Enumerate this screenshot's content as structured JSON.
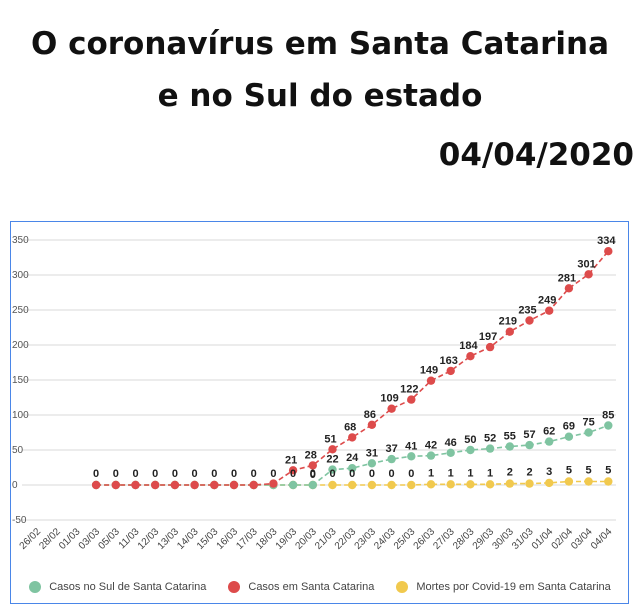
{
  "header": {
    "title_line1": "O coronavírus em Santa Catarina",
    "title_line2": "e no Sul do estado",
    "date": "04/04/2020"
  },
  "chart_data": {
    "type": "line",
    "categories": [
      "26/02",
      "28/02",
      "01/03",
      "03/03",
      "05/03",
      "11/03",
      "12/03",
      "13/03",
      "14/03",
      "15/03",
      "16/03",
      "17/03",
      "18/03",
      "19/03",
      "20/03",
      "21/03",
      "22/03",
      "23/03",
      "24/03",
      "25/03",
      "26/03",
      "27/03",
      "28/03",
      "29/03",
      "30/03",
      "31/03",
      "01/04",
      "02/04",
      "03/04",
      "04/04"
    ],
    "ylim": [
      -50,
      350
    ],
    "yticks": [
      -50,
      0,
      50,
      100,
      150,
      200,
      250,
      300,
      350
    ],
    "legend_position": "bottom",
    "series": [
      {
        "name": "Casos no Sul de Santa Catarina",
        "color": "#7fc4a1",
        "labels_shown": true,
        "values": [
          null,
          null,
          null,
          0,
          0,
          0,
          0,
          0,
          0,
          0,
          0,
          0,
          0,
          0,
          0,
          22,
          24,
          31,
          37,
          41,
          42,
          46,
          50,
          52,
          55,
          57,
          62,
          69,
          75,
          85
        ]
      },
      {
        "name": "Casos em Santa Catarina",
        "color": "#dd4b4b",
        "labels_shown": true,
        "values": [
          null,
          null,
          null,
          0,
          0,
          0,
          0,
          0,
          0,
          0,
          0,
          0,
          2,
          21,
          28,
          51,
          68,
          86,
          109,
          122,
          149,
          163,
          184,
          197,
          219,
          235,
          249,
          281,
          301,
          334
        ]
      },
      {
        "name": "Mortes por Covid-19 em Santa Catarina",
        "color": "#f1c94e",
        "labels_shown": true,
        "values": [
          null,
          null,
          null,
          0,
          0,
          0,
          0,
          0,
          0,
          0,
          0,
          0,
          0,
          0,
          0,
          0,
          0,
          0,
          0,
          0,
          1,
          1,
          1,
          1,
          2,
          2,
          3,
          5,
          5,
          5
        ]
      }
    ],
    "label_values": {
      "sul": [
        null,
        null,
        null,
        null,
        null,
        null,
        null,
        null,
        null,
        null,
        null,
        null,
        null,
        null,
        0,
        22,
        24,
        31,
        37,
        41,
        42,
        46,
        50,
        52,
        55,
        57,
        62,
        69,
        75,
        85
      ],
      "sc": [
        null,
        null,
        null,
        null,
        null,
        null,
        null,
        null,
        null,
        null,
        null,
        null,
        null,
        21,
        28,
        51,
        68,
        86,
        109,
        122,
        149,
        163,
        184,
        197,
        219,
        235,
        249,
        281,
        301,
        334
      ],
      "mortes": [
        null,
        null,
        null,
        0,
        0,
        0,
        0,
        0,
        0,
        0,
        0,
        0,
        0,
        0,
        0,
        0,
        0,
        0,
        0,
        0,
        1,
        1,
        1,
        1,
        2,
        2,
        3,
        5,
        5,
        5
      ]
    }
  }
}
